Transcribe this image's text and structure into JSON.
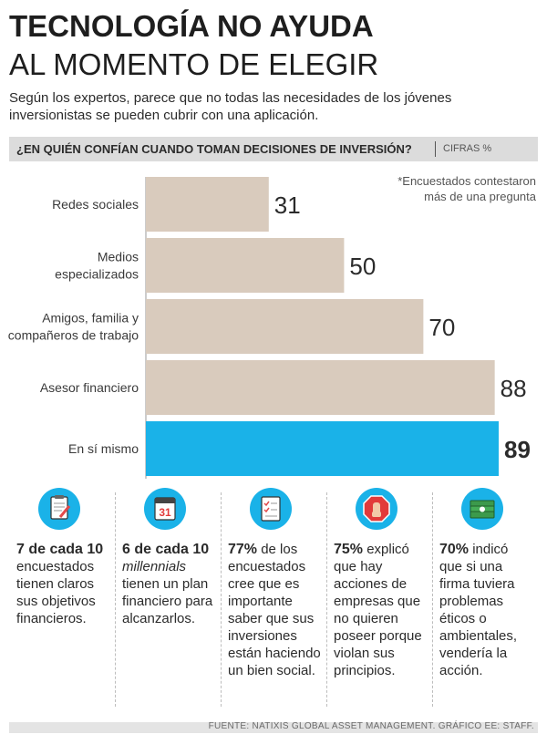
{
  "header": {
    "title_line1": "TECNOLOGÍA NO AYUDA",
    "title_line2": "AL MOMENTO DE ELEGIR",
    "subtitle": "Según los expertos, parece que no todas las necesidades de los jóvenes inversionistas se pueden cubrir con una aplicación."
  },
  "chart_header": {
    "question": "¿EN QUIÉN CONFÍAN CUANDO TOMAN DECISIONES DE INVERSIÓN?",
    "unit": "CIFRAS %"
  },
  "note": "*Encuestados contestaron más de una pregunta",
  "chart_data": {
    "type": "bar",
    "orientation": "horizontal",
    "categories": [
      "Redes sociales",
      "Medios especializados",
      "Amigos, familia y compañeros de trabajo",
      "Asesor financiero",
      "En sí mismo"
    ],
    "values": [
      31,
      50,
      70,
      88,
      89
    ],
    "colors": [
      "#d9cbbd",
      "#d9cbbd",
      "#d9cbbd",
      "#d9cbbd",
      "#1ab2e8"
    ],
    "highlight_index": 4,
    "xlim": [
      0,
      89
    ],
    "grid": false,
    "title": "¿EN QUIÉN CONFÍAN CUANDO TOMAN DECISIONES DE INVERSIÓN?",
    "xlabel": "",
    "ylabel": ""
  },
  "stats": [
    {
      "icon": "clipboard-icon",
      "bold": "7 de cada 10",
      "rest": "encuestados tienen claros sus objetivos financieros."
    },
    {
      "icon": "calendar-icon",
      "icon_text": "31",
      "bold": "6 de cada 10",
      "italic": "millennials",
      "rest": "tienen un plan financiero para alcanzarlos."
    },
    {
      "icon": "checklist-icon",
      "bold": "77%",
      "rest": "de los encuestados cree que es importante saber que sus inversiones están haciendo un bien social."
    },
    {
      "icon": "stop-hand-icon",
      "bold": "75%",
      "rest": "explicó que hay acciones de empresas que no quieren poseer porque violan sus principios."
    },
    {
      "icon": "money-icon",
      "bold": "70%",
      "rest": "indicó que si una firma tuviera problemas éticos o ambientales, vendería la acción."
    }
  ],
  "footer": "FUENTE: NATIXIS GLOBAL ASSET MANAGEMENT. GRÁFICO EE: STAFF."
}
